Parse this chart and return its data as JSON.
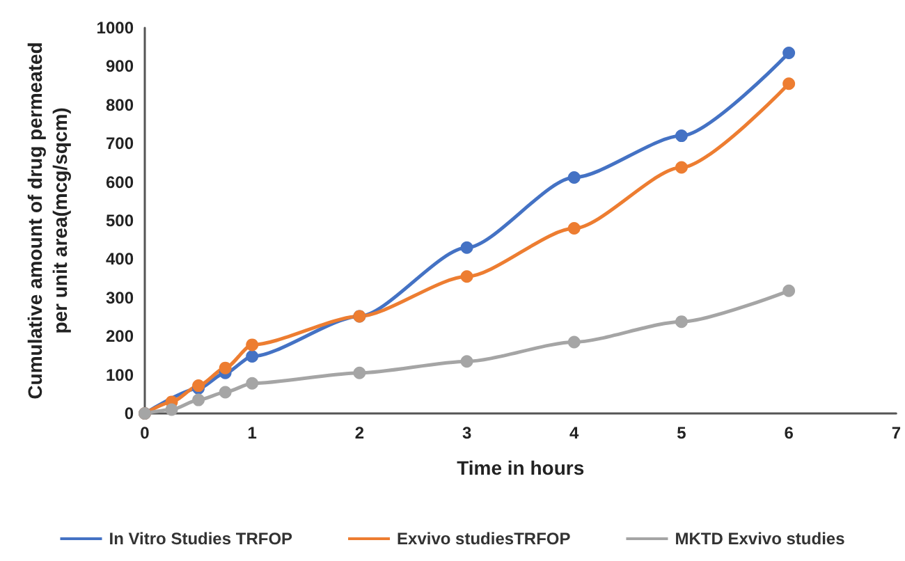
{
  "chart_data": {
    "type": "line",
    "xlabel": "Time in hours",
    "ylabel": "Cumulative amount of drug permeated per unit area(mcg/sqcm)",
    "x": [
      0,
      0.25,
      0.5,
      0.75,
      1,
      2,
      3,
      4,
      5,
      6
    ],
    "series": [
      {
        "name": "In Vitro Studies TRFOP",
        "color": "#4472c4",
        "values": [
          0,
          null,
          65,
          105,
          148,
          252,
          430,
          612,
          720,
          935
        ]
      },
      {
        "name": "Exvivo studiesTRFOP",
        "color": "#ed7d31",
        "values": [
          0,
          30,
          72,
          118,
          178,
          252,
          355,
          480,
          638,
          855
        ]
      },
      {
        "name": "MKTD Exvivo studies",
        "color": "#a5a5a5",
        "values": [
          0,
          10,
          35,
          55,
          78,
          105,
          135,
          185,
          238,
          318
        ]
      }
    ],
    "xlim": [
      0,
      7
    ],
    "xticks": [
      0,
      1,
      2,
      3,
      4,
      5,
      6,
      7
    ],
    "ylim": [
      0,
      1000
    ],
    "yticks": [
      0,
      100,
      200,
      300,
      400,
      500,
      600,
      700,
      800,
      900,
      1000
    ],
    "grid": false,
    "legend": "bottom",
    "marker": "circle",
    "line_style": "solid"
  }
}
